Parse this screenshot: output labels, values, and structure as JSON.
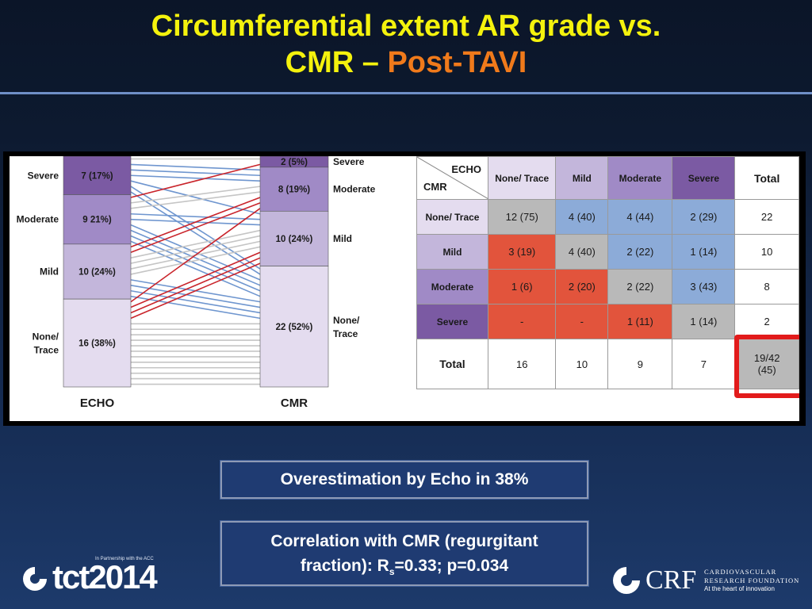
{
  "title": {
    "line1": "Circumferential extent AR grade vs.",
    "line2_main": "CMR – ",
    "line2_accent": "Post-TAVI"
  },
  "colors": {
    "title": "#f4f20d",
    "accent": "#f07a1b",
    "severe": "#7b5aa3",
    "moderate": "#a08ac6",
    "mild": "#c3b6db",
    "none": "#e4dcef",
    "cell_gray": "#b9b9b9",
    "cell_blue": "#8cabd8",
    "cell_red": "#e2543c",
    "concordant_line": "#c5c5c5",
    "under_line": "#6f96cf",
    "over_line": "#c9242b",
    "highlight": "#e21b1b"
  },
  "chart_data": [
    {
      "type": "bar",
      "subtype": "stacked-alluvial",
      "xlabel_echo": "ECHO",
      "xlabel_cmr": "CMR",
      "echo_bar": [
        {
          "category": "Severe",
          "label": "7 (17%)",
          "count": 7
        },
        {
          "category": "Moderate",
          "label": "9 21%)",
          "count": 9
        },
        {
          "category": "Mild",
          "label": "10 (24%)",
          "count": 10
        },
        {
          "category": "None/ Trace",
          "label": "16 (38%)",
          "count": 16
        }
      ],
      "cmr_bar": [
        {
          "category": "Severe",
          "label": "2 (5%)",
          "count": 2
        },
        {
          "category": "Moderate",
          "label": "8 (19%)",
          "count": 8
        },
        {
          "category": "Mild",
          "label": "10 (24%)",
          "count": 10
        },
        {
          "category": "None/ Trace",
          "label": "22 (52%)",
          "count": 22
        }
      ],
      "flows_cmr_rows_by_echo_cols": [
        [
          12,
          4,
          4,
          2
        ],
        [
          3,
          4,
          2,
          1
        ],
        [
          1,
          2,
          2,
          3
        ],
        [
          0,
          0,
          1,
          1
        ]
      ]
    },
    {
      "type": "table",
      "corner_echo": "ECHO",
      "corner_cmr": "CMR",
      "col_headers": [
        "None/ Trace",
        "Mild",
        "Moderate",
        "Severe",
        "Total"
      ],
      "rows": [
        {
          "header": "None/ Trace",
          "cells": [
            "12 (75)",
            "4 (40)",
            "4 (44)",
            "2 (29)"
          ],
          "colors": [
            "gray",
            "blue",
            "blue",
            "blue"
          ],
          "total": "22"
        },
        {
          "header": "Mild",
          "cells": [
            "3 (19)",
            "4 (40)",
            "2 (22)",
            "1 (14)"
          ],
          "colors": [
            "red",
            "gray",
            "blue",
            "blue"
          ],
          "total": "10"
        },
        {
          "header": "Moderate",
          "cells": [
            "1 (6)",
            "2 (20)",
            "2 (22)",
            "3 (43)"
          ],
          "colors": [
            "red",
            "red",
            "gray",
            "blue"
          ],
          "total": "8"
        },
        {
          "header": "Severe",
          "cells": [
            "-",
            "-",
            "1 (11)",
            "1 (14)"
          ],
          "colors": [
            "red",
            "red",
            "red",
            "gray"
          ],
          "total": "2"
        }
      ],
      "total_row": {
        "header": "Total",
        "cells": [
          "16",
          "10",
          "9",
          "7"
        ],
        "grand_total_line1": "19/42",
        "grand_total_line2": "(45)"
      }
    }
  ],
  "box1": "Overestimation by Echo in 38%",
  "box2": {
    "line1": "Correlation with CMR (regurgitant",
    "line2_pre": "fraction): R",
    "line2_sub": "s",
    "line2_post": "=0.33; p=0.034"
  },
  "logo_left": {
    "word": "tct2014",
    "tag": "In Partnership with the ACC"
  },
  "logo_right": {
    "crf": "CRF",
    "sub1": "CARDIOVASCULAR",
    "sub2": "RESEARCH FOUNDATION",
    "sub3": "At the heart of innovation"
  }
}
